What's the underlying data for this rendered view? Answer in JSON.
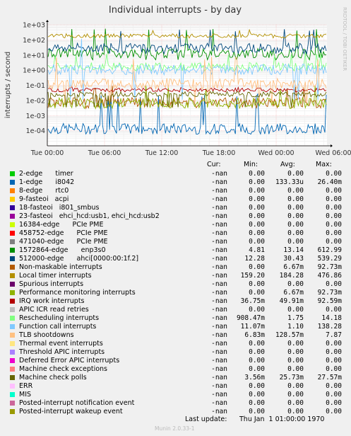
{
  "chart_data": {
    "type": "line",
    "title": "Individual interrupts - by day",
    "ylabel": "interrupts / second",
    "yscale": "log",
    "y_ticks": [
      "1e-04",
      "1e-03",
      "1e-02",
      "1e-01",
      "1e+00",
      "1e+01",
      "1e+02",
      "1e+03"
    ],
    "x_ticks": [
      "Tue 00:00",
      "Tue 06:00",
      "Tue 12:00",
      "Tue 18:00",
      "Wed 00:00",
      "Wed 06:00"
    ],
    "series": [
      {
        "name": "2-edge      timer",
        "color": "#00cc00",
        "cur": "-nan",
        "min": "0.00",
        "avg": "0.00",
        "max": "0.00"
      },
      {
        "name": "1-edge      i8042",
        "color": "#0066b3",
        "cur": "-nan",
        "min": "0.00",
        "avg": "133.33u",
        "max": "26.40m"
      },
      {
        "name": "8-edge      rtc0",
        "color": "#ff8000",
        "cur": "-nan",
        "min": "0.00",
        "avg": "0.00",
        "max": "0.00"
      },
      {
        "name": "9-fasteoi   acpi",
        "color": "#ffcc00",
        "cur": "-nan",
        "min": "0.00",
        "avg": "0.00",
        "max": "0.00"
      },
      {
        "name": "18-fasteoi   i801_smbus",
        "color": "#330099",
        "cur": "-nan",
        "min": "0.00",
        "avg": "0.00",
        "max": "0.00"
      },
      {
        "name": "23-fasteoi   ehci_hcd:usb1, ehci_hcd:usb2",
        "color": "#990099",
        "cur": "-nan",
        "min": "0.00",
        "avg": "0.00",
        "max": "0.00"
      },
      {
        "name": "16384-edge      PCIe PME",
        "color": "#ccff00",
        "cur": "-nan",
        "min": "0.00",
        "avg": "0.00",
        "max": "0.00"
      },
      {
        "name": "458752-edge      PCIe PME",
        "color": "#ff0000",
        "cur": "-nan",
        "min": "0.00",
        "avg": "0.00",
        "max": "0.00"
      },
      {
        "name": "471040-edge      PCIe PME",
        "color": "#808080",
        "cur": "-nan",
        "min": "0.00",
        "avg": "0.00",
        "max": "0.00"
      },
      {
        "name": "1572864-edge      enp3s0",
        "color": "#008f00",
        "cur": "-nan",
        "min": "4.81",
        "avg": "13.14",
        "max": "612.99"
      },
      {
        "name": "512000-edge      ahci[0000:00:1f.2]",
        "color": "#00487d",
        "cur": "-nan",
        "min": "12.28",
        "avg": "30.43",
        "max": "539.29"
      },
      {
        "name": "Non-maskable interrupts",
        "color": "#b35a00",
        "cur": "-nan",
        "min": "0.00",
        "avg": "6.67m",
        "max": "92.73m"
      },
      {
        "name": "Local timer interrupts",
        "color": "#b38f00",
        "cur": "-nan",
        "min": "159.20",
        "avg": "184.28",
        "max": "476.86"
      },
      {
        "name": "Spurious interrupts",
        "color": "#6b006b",
        "cur": "-nan",
        "min": "0.00",
        "avg": "0.00",
        "max": "0.00"
      },
      {
        "name": "Performance monitoring interrupts",
        "color": "#8fb300",
        "cur": "-nan",
        "min": "0.00",
        "avg": "6.67m",
        "max": "92.73m"
      },
      {
        "name": "IRQ work interrupts",
        "color": "#b30000",
        "cur": "-nan",
        "min": "36.75m",
        "avg": "49.91m",
        "max": "92.59m"
      },
      {
        "name": "APIC ICR read retries",
        "color": "#bebebe",
        "cur": "-nan",
        "min": "0.00",
        "avg": "0.00",
        "max": "0.00"
      },
      {
        "name": "Rescheduling interrupts",
        "color": "#80ff80",
        "cur": "-nan",
        "min": "908.47m",
        "avg": "1.75",
        "max": "14.18"
      },
      {
        "name": "Function call interrupts",
        "color": "#80c9ff",
        "cur": "-nan",
        "min": "11.07m",
        "avg": "1.10",
        "max": "138.28"
      },
      {
        "name": "TLB shootdowns",
        "color": "#ffc080",
        "cur": "-nan",
        "min": "6.83m",
        "avg": "128.57m",
        "max": "7.87"
      },
      {
        "name": "Thermal event interrupts",
        "color": "#ffe680",
        "cur": "-nan",
        "min": "0.00",
        "avg": "0.00",
        "max": "0.00"
      },
      {
        "name": "Threshold APIC interrupts",
        "color": "#aa80ff",
        "cur": "-nan",
        "min": "0.00",
        "avg": "0.00",
        "max": "0.00"
      },
      {
        "name": "Deferred Error APIC interrupts",
        "color": "#ee00cc",
        "cur": "-nan",
        "min": "0.00",
        "avg": "0.00",
        "max": "0.00"
      },
      {
        "name": "Machine check exceptions",
        "color": "#ff8080",
        "cur": "-nan",
        "min": "0.00",
        "avg": "0.00",
        "max": "0.00"
      },
      {
        "name": "Machine check polls",
        "color": "#666600",
        "cur": "-nan",
        "min": "3.56m",
        "avg": "25.73m",
        "max": "27.57m"
      },
      {
        "name": "ERR",
        "color": "#ffbfff",
        "cur": "-nan",
        "min": "0.00",
        "avg": "0.00",
        "max": "0.00"
      },
      {
        "name": "MIS",
        "color": "#00ffcc",
        "cur": "-nan",
        "min": "0.00",
        "avg": "0.00",
        "max": "0.00"
      },
      {
        "name": "Posted-interrupt notification event",
        "color": "#cc6699",
        "cur": "-nan",
        "min": "0.00",
        "avg": "0.00",
        "max": "0.00"
      },
      {
        "name": "Posted-interrupt wakeup event",
        "color": "#999900",
        "cur": "-nan",
        "min": "0.00",
        "avg": "0.00",
        "max": "0.00"
      }
    ]
  },
  "legend_headers": {
    "cur": "Cur:",
    "min": "Min:",
    "avg": "Avg:",
    "max": "Max:"
  },
  "footer": {
    "last_update_label": "Last update:",
    "last_update_value": "Thu Jan  1 01:00:00 1970",
    "munin_version": "Munin 2.0.33-1"
  },
  "side_label": "RRDTOOL / TOBI OETIKER"
}
